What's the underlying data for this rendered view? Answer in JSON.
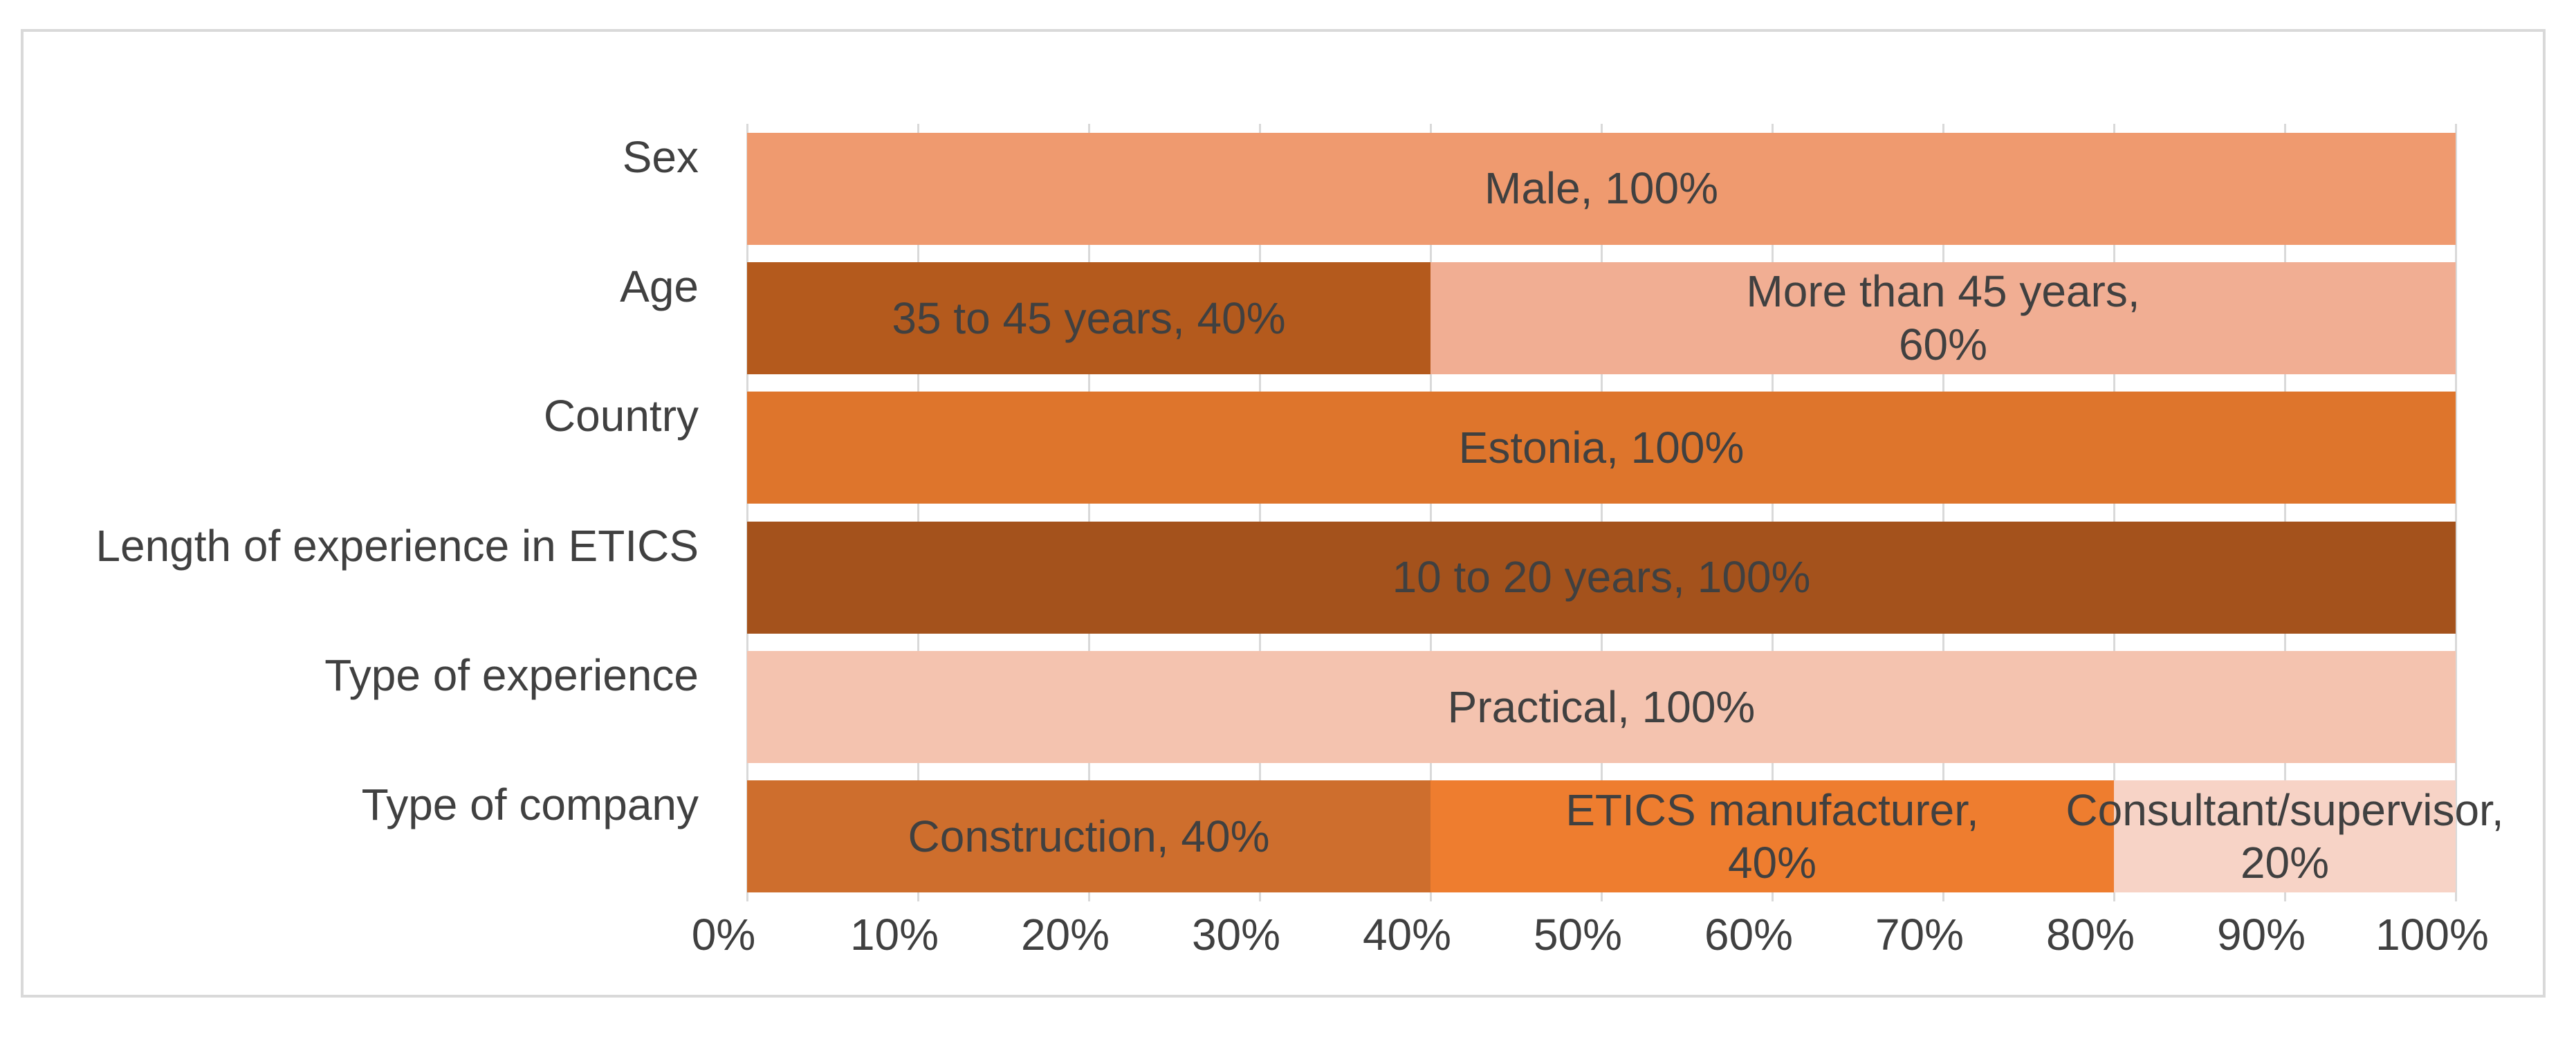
{
  "chart": {
    "background_color": "#FFFFFF",
    "frame_border_color": "#D9D9D9",
    "gridline_color": "#D9D9D9",
    "text_color": "#404040"
  },
  "chart_data": {
    "type": "bar",
    "orientation": "horizontal",
    "stacked": true,
    "units": "percent",
    "title": "",
    "xlabel": "",
    "ylabel": "",
    "xlim": [
      0,
      100
    ],
    "grid": true,
    "legend": "none",
    "x_ticks": [
      "0%",
      "10%",
      "20%",
      "30%",
      "40%",
      "50%",
      "60%",
      "70%",
      "80%",
      "90%",
      "100%"
    ],
    "categories": [
      "Sex",
      "Age",
      "Country",
      "Length of experience in ETICS",
      "Type of experience",
      "Type of company"
    ],
    "rows": [
      {
        "category": "Sex",
        "segments": [
          {
            "label": "Male",
            "value": 100,
            "text": "Male, 100%",
            "color": "#EF9A6F"
          }
        ]
      },
      {
        "category": "Age",
        "segments": [
          {
            "label": "35 to 45 years",
            "value": 40,
            "text": "35 to 45 years, 40%",
            "color": "#B45A1D"
          },
          {
            "label": "More than 45 years",
            "value": 60,
            "text": "More than 45 years,\n60%",
            "color": "#F1AE93"
          }
        ]
      },
      {
        "category": "Country",
        "segments": [
          {
            "label": "Estonia",
            "value": 100,
            "text": "Estonia, 100%",
            "color": "#DE752C"
          }
        ]
      },
      {
        "category": "Length of experience in ETICS",
        "segments": [
          {
            "label": "10 to 20 years",
            "value": 100,
            "text": "10 to 20 years, 100%",
            "color": "#A4521C"
          }
        ]
      },
      {
        "category": "Type of experience",
        "segments": [
          {
            "label": "Practical",
            "value": 100,
            "text": "Practical, 100%",
            "color": "#F4C3AF"
          }
        ]
      },
      {
        "category": "Type of company",
        "segments": [
          {
            "label": "Construction",
            "value": 40,
            "text": "Construction, 40%",
            "color": "#CE6E2D"
          },
          {
            "label": "ETICS manufacturer",
            "value": 40,
            "text": "ETICS manufacturer,\n40%",
            "color": "#EE7D2F"
          },
          {
            "label": "Consultant/supervisor",
            "value": 20,
            "text": "Consultant/supervisor,\n20%",
            "color": "#F7D3C6"
          }
        ]
      }
    ]
  }
}
